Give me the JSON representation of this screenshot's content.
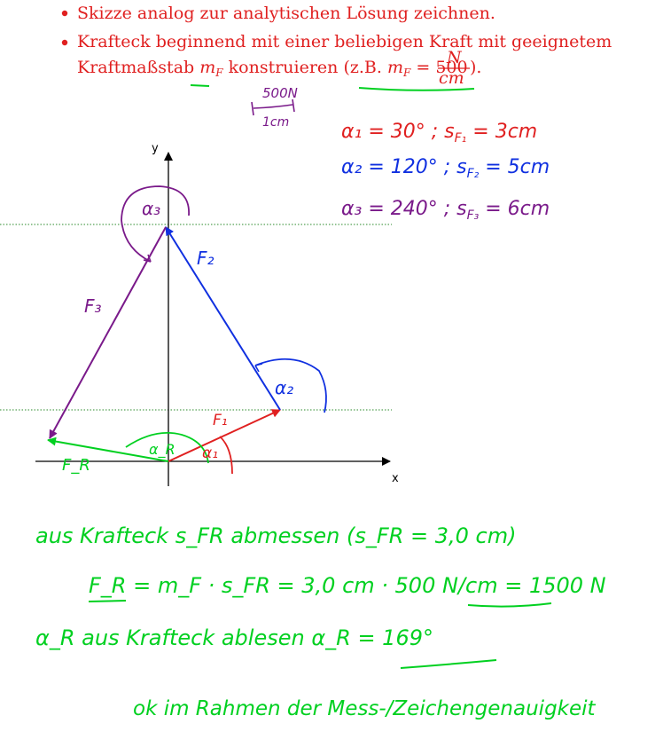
{
  "bullets": [
    {
      "text": "Skizze analog zur analytischen Lösung zeichnen."
    },
    {
      "line1": "Krafteck beginnend mit einer beliebigen Kraft mit geeignetem",
      "line2_a": "Kraftmaßstab ",
      "line2_var": "m",
      "line2_sub": "F",
      "line2_b": " konstruieren (z.B. ",
      "line2_eq": " = 500",
      "frac_num": "N",
      "frac_den": "cm",
      "line2_c": ")."
    }
  ],
  "scale_note": {
    "top": "500N",
    "bottom": "1cm"
  },
  "angle_list": [
    {
      "alpha": "α₁ = 30° ; s",
      "sub": "F₁",
      "rest": " = 3cm"
    },
    {
      "alpha": "α₂ = 120° ; s",
      "sub": "F₂",
      "rest": " = 5cm"
    },
    {
      "alpha": "α₃ = 240° ; s",
      "sub": "F₃",
      "rest": " = 6cm"
    }
  ],
  "axes": {
    "x": "x",
    "y": "y"
  },
  "labels": {
    "alpha3": "α₃",
    "F2": "F₂",
    "F3": "F₃",
    "alpha2": "α₂",
    "F1": "F₁",
    "alpha1": "α₁",
    "FR": "F_R",
    "alphaR": "α_R"
  },
  "colors": {
    "red": "#e02020",
    "blue": "#1030e0",
    "purple": "#7a1a8a",
    "green": "#00d020",
    "black": "#000000"
  },
  "notes": [
    "aus Krafteck s_FR abmessen (s_FR = 3,0 cm)",
    "F_R = m_F · s_FR = 3,0 cm · 500 N/cm = 1500 N",
    "α_R aus Krafteck ablesen  α_R = 169°",
    "ok im Rahmen der Mess-/Zeichengenauigkeit"
  ]
}
